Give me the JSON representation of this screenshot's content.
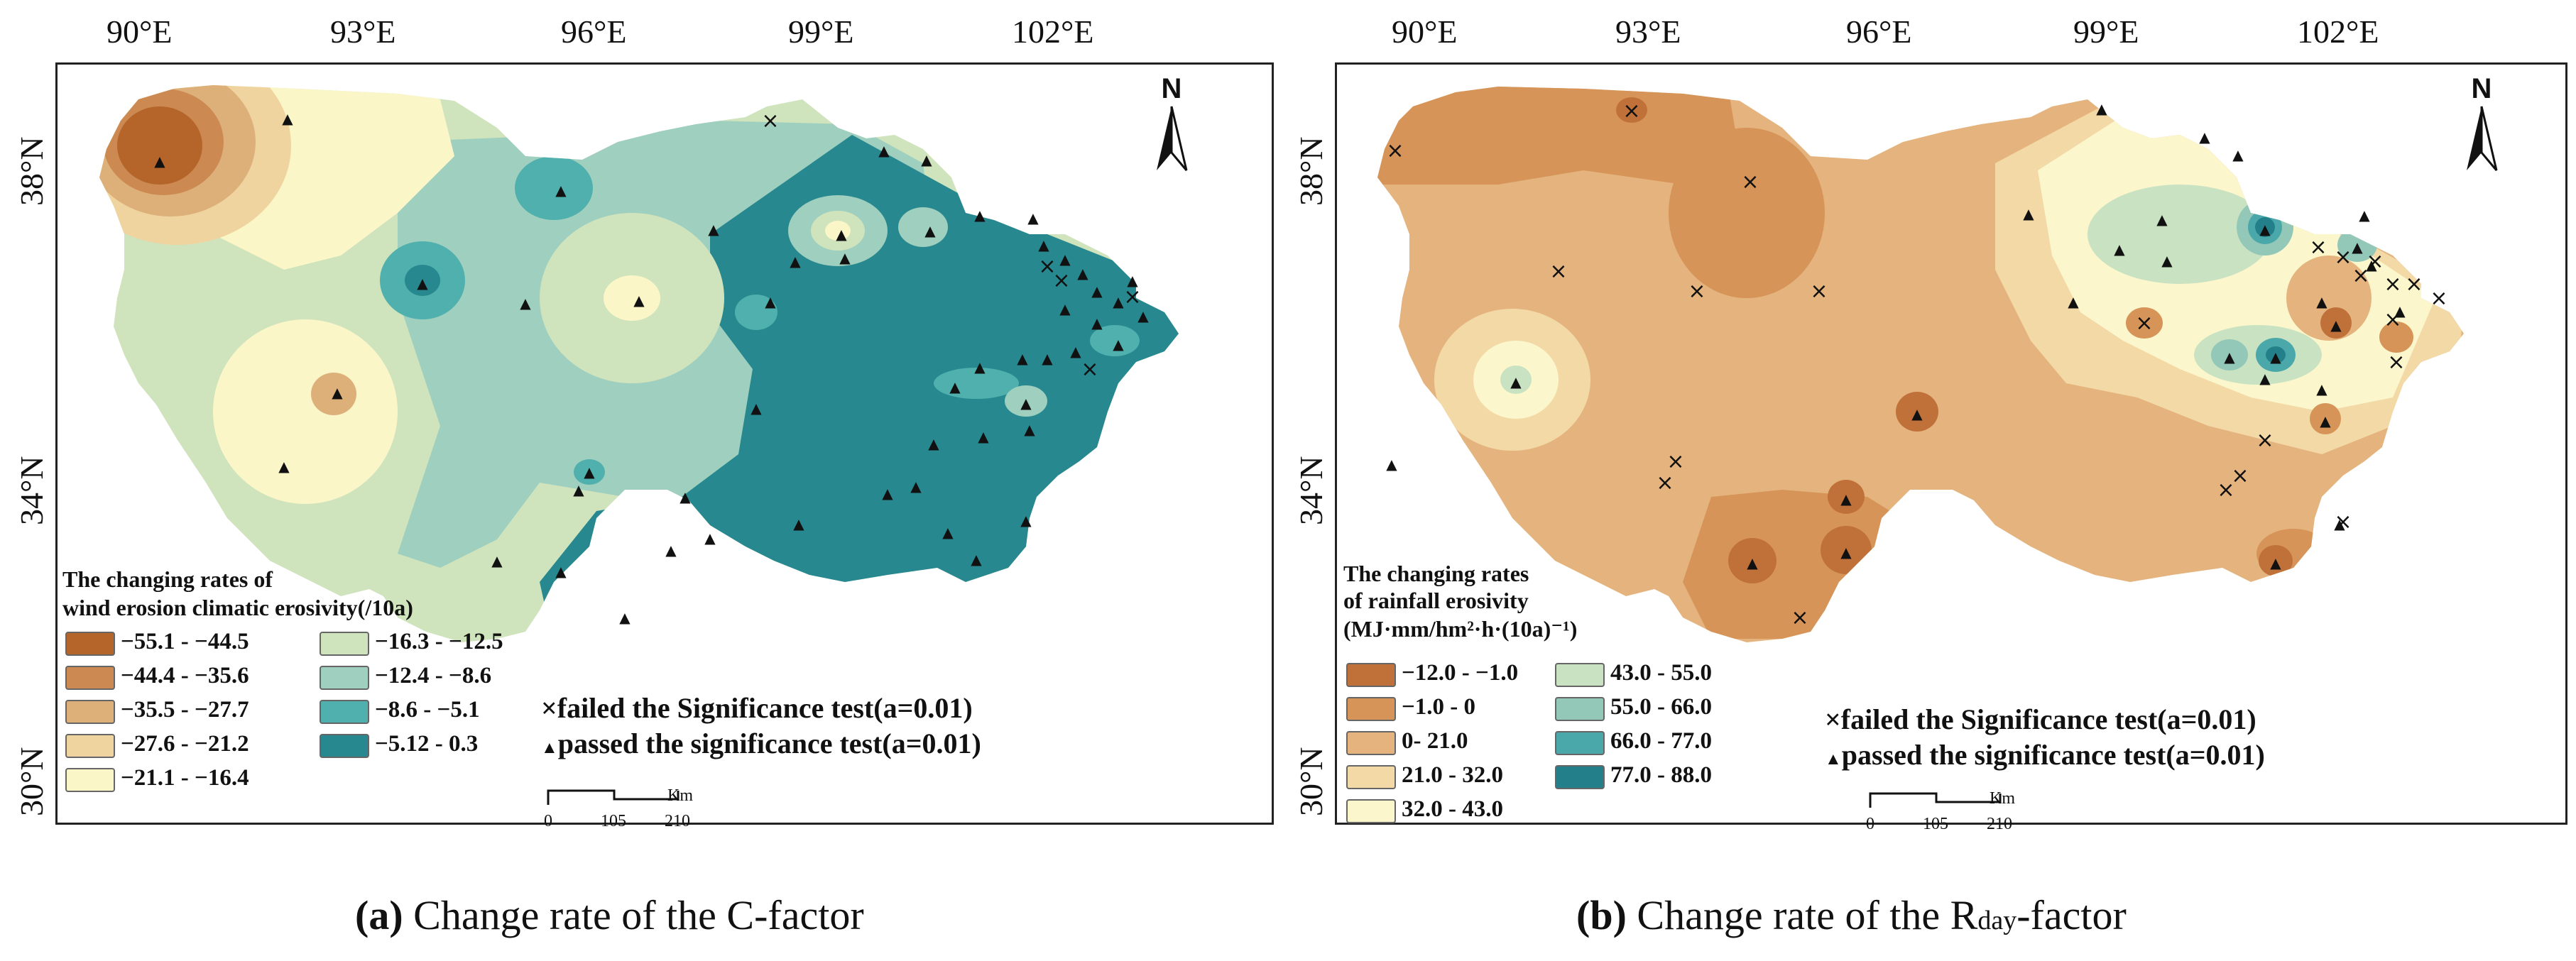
{
  "panel_a": {
    "top_ticks": [
      "90°E",
      "93°E",
      "96°E",
      "99°E",
      "102°E"
    ],
    "left_ticks": [
      "38°N",
      "34°N",
      "30°N"
    ],
    "north_label": "N",
    "legend_title_line1": "The changing rates of",
    "legend_title_line2": "wind erosion climatic erosivity(/10a)",
    "legend_items": [
      {
        "label": "−55.1 - −44.5",
        "color": "#b5652a"
      },
      {
        "label": "−44.4 - −35.6",
        "color": "#cc8a52"
      },
      {
        "label": "−35.5 - −27.7",
        "color": "#ddb07a"
      },
      {
        "label": "−27.6 - −21.2",
        "color": "#f0d4a0"
      },
      {
        "label": "−21.1 - −16.4",
        "color": "#fbf6c8"
      },
      {
        "label": "−16.3 - −12.5",
        "color": "#cfe3bd"
      },
      {
        "label": "−12.4 - −8.6",
        "color": "#9fcfbf"
      },
      {
        "label": "−8.6 - −5.1",
        "color": "#4fb0ad"
      },
      {
        "label": "−5.12 - 0.3",
        "color": "#27888f"
      }
    ],
    "failed_label": "failed the Significance test(a=0.01)",
    "passed_label": "passed the significance test(a=0.01)",
    "scale": {
      "unit": "Km",
      "ticks": [
        "0",
        "105",
        "210"
      ]
    },
    "caption_letter": "(a)",
    "caption_text": " Change rate of the C-factor"
  },
  "panel_b": {
    "top_ticks": [
      "90°E",
      "93°E",
      "96°E",
      "99°E",
      "102°E"
    ],
    "left_ticks": [
      "38°N",
      "34°N",
      "30°N"
    ],
    "north_label": "N",
    "legend_title_line1": "The changing rates",
    "legend_title_line2": "of rainfall erosivity",
    "legend_title_line3": "(MJ·mm/hm²·h·(10a)⁻¹)",
    "legend_items": [
      {
        "label": "−12.0 - −1.0",
        "color": "#c0713a"
      },
      {
        "label": "−1.0 - 0",
        "color": "#d69458"
      },
      {
        "label": "0- 21.0",
        "color": "#e5b47e"
      },
      {
        "label": "21.0 - 32.0",
        "color": "#f2d9a6"
      },
      {
        "label": "32.0 - 43.0",
        "color": "#fbf6cc"
      },
      {
        "label": "43.0 - 55.0",
        "color": "#c9e2c2"
      },
      {
        "label": "55.0 - 66.0",
        "color": "#93c7b8"
      },
      {
        "label": "66.0 - 77.0",
        "color": "#4ba8aa"
      },
      {
        "label": "77.0 - 88.0",
        "color": "#23808a"
      }
    ],
    "failed_label": "failed the Significance test(a=0.01)",
    "passed_label": "passed the significance test(a=0.01)",
    "scale": {
      "unit": "Km",
      "ticks": [
        "0",
        "105",
        "210"
      ]
    },
    "caption_letter": "(b)",
    "caption_text_pre": " Change rate of the R",
    "caption_sub": "day",
    "caption_text_post": "-factor"
  },
  "marker_symbols": {
    "failed": "×",
    "passed": "▲"
  }
}
